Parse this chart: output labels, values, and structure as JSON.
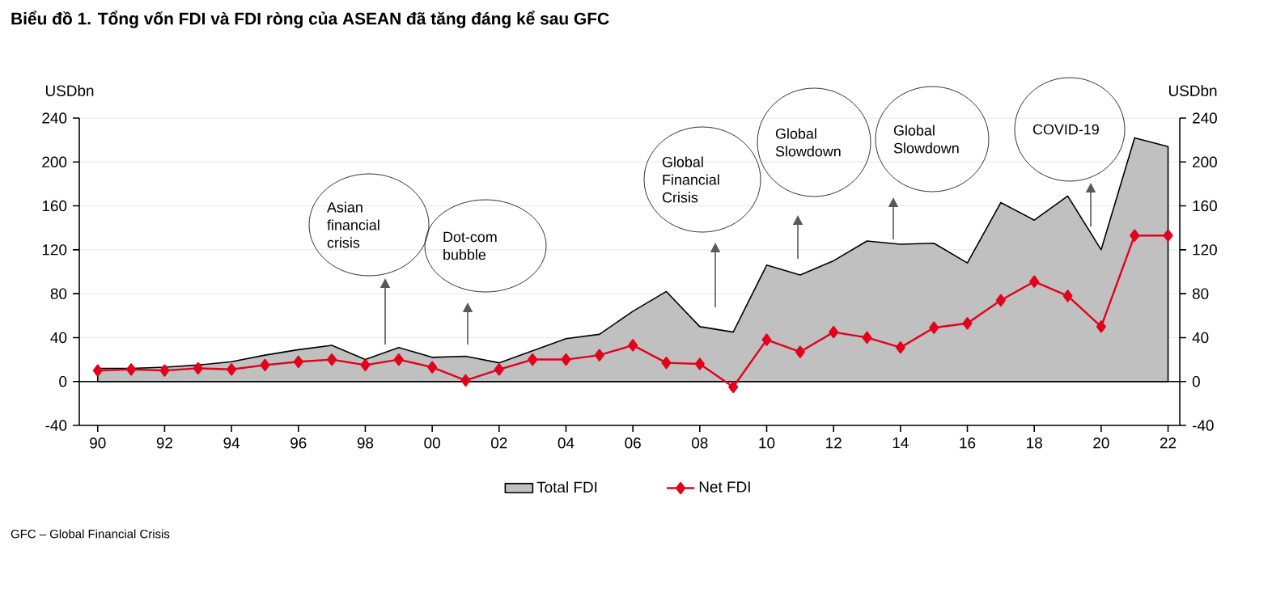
{
  "chart_data": {
    "type": "line",
    "title": "Biểu đồ 1. Tổng vốn FDI và FDI ròng của ASEAN đã tăng đáng kể sau GFC",
    "ylabel": "USDbn",
    "y2label": "USDbn",
    "categories": [
      "90",
      null,
      "92",
      null,
      "94",
      null,
      "96",
      null,
      "98",
      null,
      "00",
      null,
      "02",
      null,
      "04",
      null,
      "06",
      null,
      "08",
      null,
      "10",
      null,
      "12",
      null,
      "14",
      null,
      "16",
      null,
      "18",
      null,
      "20",
      null,
      "22"
    ],
    "series": [
      {
        "name": "Total FDI",
        "type": "area",
        "color": "#c0c0c0",
        "values": [
          12,
          12,
          13,
          15,
          18,
          24,
          29,
          33,
          20,
          31,
          22,
          23,
          17,
          28,
          39,
          43,
          64,
          82,
          50,
          45,
          106,
          97,
          110,
          128,
          125,
          126,
          108,
          163,
          147,
          169,
          120,
          222,
          214
        ]
      },
      {
        "name": "Net FDI",
        "color": "#e3001b",
        "marker": "diamond",
        "values": [
          10,
          11,
          10,
          12,
          11,
          15,
          18,
          20,
          15,
          20,
          13,
          1,
          11,
          20,
          20,
          24,
          33,
          17,
          16,
          -5,
          38,
          27,
          45,
          40,
          31,
          49,
          53,
          74,
          91,
          78,
          50,
          133,
          133
        ]
      }
    ],
    "ylim": [
      -40,
      240
    ],
    "yticks": [
      -40,
      0,
      40,
      80,
      120,
      160,
      200,
      240
    ],
    "y2lim": [
      -40,
      240
    ],
    "y2ticks": [
      -40,
      0,
      40,
      80,
      120,
      160,
      200,
      240
    ],
    "grid": "y",
    "legend": "bottom",
    "annotations": [
      "Asian financial crisis",
      "Dot-com bubble",
      "Global Financial Crisis",
      "Global Slowdown",
      "Global Slowdown",
      "COVID-19",
      "GFC – Global Financial Crisis"
    ]
  }
}
